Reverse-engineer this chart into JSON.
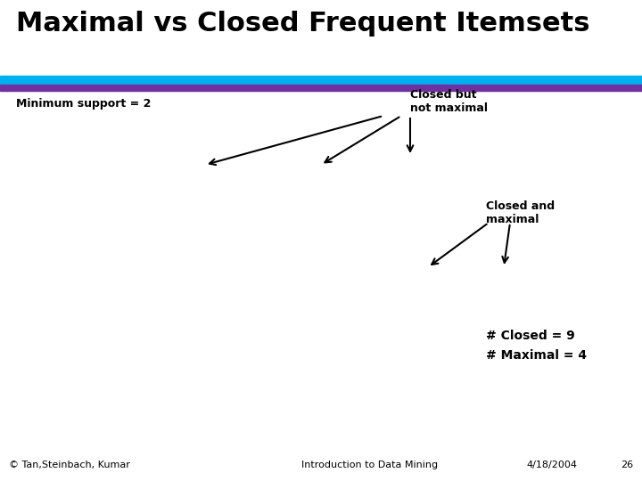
{
  "title": "Maximal vs Closed Frequent Itemsets",
  "title_fontsize": 22,
  "title_fontweight": "bold",
  "title_color": "#000000",
  "background_color": "#ffffff",
  "bar1_color": "#00b0f0",
  "bar2_color": "#7030a0",
  "min_support_text": "Minimum support = 2",
  "closed_not_maximal_text": "Closed but\nnot maximal",
  "closed_and_maximal_text": "Closed and\nmaximal",
  "closed_count_text": "# Closed = 9",
  "maximal_count_text": "# Maximal = 4",
  "footer_left": "© Tan,Steinbach, Kumar",
  "footer_center": "Introduction to Data Mining",
  "footer_right": "4/18/2004",
  "footer_page": "26",
  "footer_fontsize": 8,
  "label_fontsize": 9,
  "count_fontsize": 10
}
